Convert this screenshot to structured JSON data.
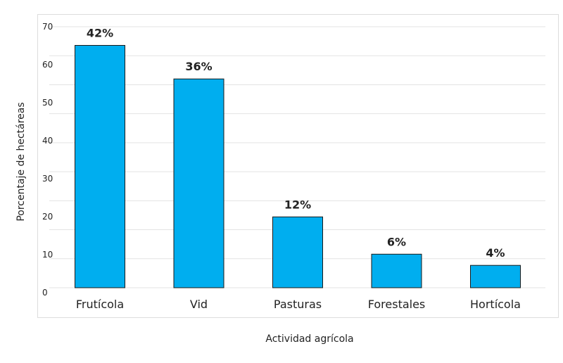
{
  "chart_data": {
    "type": "bar",
    "title": "",
    "xlabel": "Actividad agrícola",
    "ylabel": "Porcentaje de hectáreas",
    "ylim": [
      0,
      70
    ],
    "yticks": [
      "0",
      "10",
      "20",
      "30",
      "40",
      "50",
      "60",
      "70"
    ],
    "categories": [
      "Frutícola",
      "Vid",
      "Pasturas",
      "Forestales",
      "Hortícola"
    ],
    "values": [
      65,
      56,
      19,
      9,
      6
    ],
    "data_labels": [
      "42%",
      "36%",
      "12%",
      "6%",
      "4%"
    ],
    "grid": true,
    "bar_color": "#00AEEF"
  }
}
